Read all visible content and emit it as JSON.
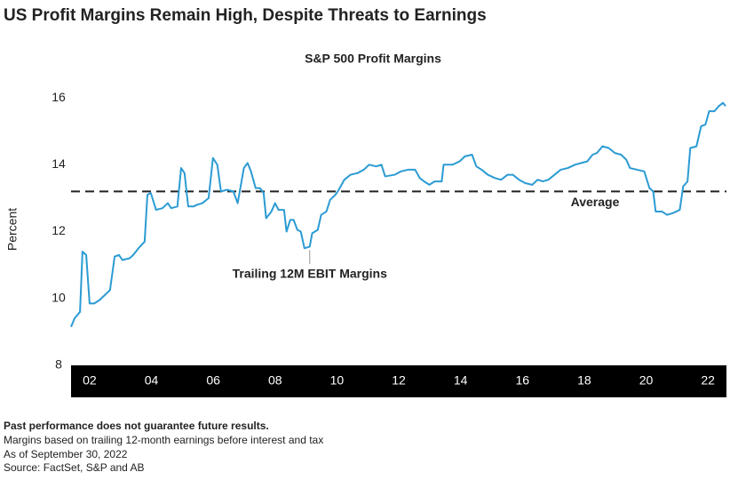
{
  "chart_data": {
    "type": "line",
    "title": "US Profit Margins Remain High, Despite Threats to Earnings",
    "subtitle": "S&P 500 Profit Margins",
    "ylabel": "Percent",
    "ylim": [
      8,
      16.4
    ],
    "yticks": [
      8,
      10,
      12,
      14,
      16
    ],
    "xlim": [
      2001.4,
      2022.6
    ],
    "xticks": [
      {
        "value": 2002,
        "label": "02"
      },
      {
        "value": 2004,
        "label": "04"
      },
      {
        "value": 2006,
        "label": "06"
      },
      {
        "value": 2008,
        "label": "08"
      },
      {
        "value": 2010,
        "label": "10"
      },
      {
        "value": 2012,
        "label": "12"
      },
      {
        "value": 2014,
        "label": "14"
      },
      {
        "value": 2016,
        "label": "16"
      },
      {
        "value": 2018,
        "label": "18"
      },
      {
        "value": 2020,
        "label": "20"
      },
      {
        "value": 2022,
        "label": "22"
      }
    ],
    "grid": false,
    "average": {
      "label": "Average",
      "value": 13.2,
      "color": "#222222"
    },
    "series": [
      {
        "name": "Trailing 12M EBIT Margins",
        "color": "#2b9bd3",
        "x": [
          2001.4,
          2001.51,
          2001.69,
          2001.77,
          2001.89,
          2002.0,
          2002.15,
          2002.32,
          2002.49,
          2002.66,
          2002.81,
          2002.95,
          2003.06,
          2003.29,
          2003.41,
          2003.58,
          2003.78,
          2003.87,
          2003.98,
          2004.15,
          2004.36,
          2004.53,
          2004.64,
          2004.84,
          2004.96,
          2005.07,
          2005.19,
          2005.36,
          2005.47,
          2005.65,
          2005.85,
          2005.99,
          2006.13,
          2006.25,
          2006.45,
          2006.65,
          2006.79,
          2006.99,
          2007.11,
          2007.22,
          2007.37,
          2007.51,
          2007.63,
          2007.71,
          2007.88,
          2008.0,
          2008.11,
          2008.29,
          2008.37,
          2008.49,
          2008.6,
          2008.72,
          2008.83,
          2008.95,
          2009.12,
          2009.2,
          2009.38,
          2009.49,
          2009.66,
          2009.78,
          2009.95,
          2010.06,
          2010.24,
          2010.44,
          2010.67,
          2010.87,
          2011.04,
          2011.27,
          2011.44,
          2011.56,
          2011.87,
          2012.07,
          2012.3,
          2012.53,
          2012.68,
          2012.82,
          2012.99,
          2013.16,
          2013.39,
          2013.45,
          2013.74,
          2013.97,
          2014.14,
          2014.37,
          2014.51,
          2014.68,
          2014.88,
          2015.11,
          2015.31,
          2015.52,
          2015.69,
          2015.89,
          2016.09,
          2016.32,
          2016.49,
          2016.66,
          2016.84,
          2017.04,
          2017.24,
          2017.47,
          2017.7,
          2017.9,
          2018.1,
          2018.27,
          2018.41,
          2018.59,
          2018.79,
          2018.99,
          2019.19,
          2019.36,
          2019.48,
          2019.71,
          2019.94,
          2020.11,
          2020.23,
          2020.31,
          2020.51,
          2020.68,
          2020.86,
          2021.09,
          2021.2,
          2021.34,
          2021.43,
          2021.63,
          2021.78,
          2021.92,
          2022.04,
          2022.21,
          2022.35,
          2022.49,
          2022.57
        ],
        "values": [
          9.15,
          9.4,
          9.6,
          11.4,
          11.3,
          9.85,
          9.85,
          9.95,
          10.1,
          10.25,
          11.25,
          11.3,
          11.15,
          11.2,
          11.3,
          11.5,
          11.7,
          13.1,
          13.15,
          12.65,
          12.7,
          12.85,
          12.7,
          12.75,
          13.9,
          13.75,
          12.75,
          12.75,
          12.8,
          12.85,
          13.0,
          14.2,
          14.0,
          13.2,
          13.25,
          13.2,
          12.85,
          13.9,
          14.05,
          13.8,
          13.3,
          13.3,
          13.15,
          12.4,
          12.6,
          12.85,
          12.65,
          12.65,
          12.0,
          12.35,
          12.35,
          12.05,
          12.0,
          11.5,
          11.55,
          11.95,
          12.05,
          12.5,
          12.6,
          12.95,
          13.1,
          13.25,
          13.55,
          13.7,
          13.75,
          13.85,
          14.0,
          13.95,
          14.0,
          13.65,
          13.7,
          13.8,
          13.85,
          13.85,
          13.6,
          13.5,
          13.4,
          13.5,
          13.5,
          14.0,
          14.0,
          14.1,
          14.25,
          14.3,
          13.95,
          13.85,
          13.7,
          13.6,
          13.55,
          13.7,
          13.7,
          13.55,
          13.45,
          13.4,
          13.55,
          13.5,
          13.55,
          13.7,
          13.85,
          13.9,
          14.0,
          14.05,
          14.1,
          14.3,
          14.35,
          14.55,
          14.5,
          14.35,
          14.3,
          14.15,
          13.9,
          13.85,
          13.8,
          13.3,
          13.2,
          12.6,
          12.6,
          12.5,
          12.55,
          12.65,
          13.35,
          13.5,
          14.5,
          14.55,
          15.15,
          15.2,
          15.6,
          15.6,
          15.75,
          15.85,
          15.75
        ]
      }
    ],
    "notes": [
      "Past performance does not guarantee future results.",
      "Margins based on trailing 12-month earnings before interest and tax",
      "As of September 30, 2022",
      "Source: FactSet, S&P and AB"
    ]
  }
}
